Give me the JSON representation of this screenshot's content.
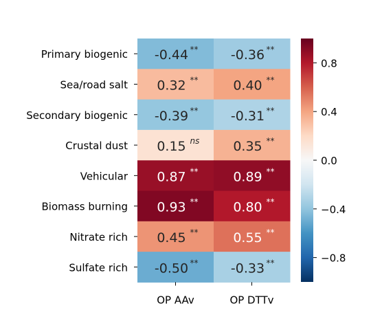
{
  "chart_data": {
    "type": "heatmap",
    "title": "",
    "xlabel": "",
    "ylabel": "",
    "columns": [
      "OP AAv",
      "OP DTTv"
    ],
    "rows": [
      "Primary biogenic",
      "Sea/road salt",
      "Secondary biogenic",
      "Crustal dust",
      "Vehicular",
      "Biomass burning",
      "Nitrate rich",
      "Sulfate rich"
    ],
    "values": [
      [
        -0.44,
        -0.36
      ],
      [
        0.32,
        0.4
      ],
      [
        -0.39,
        -0.31
      ],
      [
        0.15,
        0.35
      ],
      [
        0.87,
        0.89
      ],
      [
        0.93,
        0.8
      ],
      [
        0.45,
        0.55
      ],
      [
        -0.5,
        -0.33
      ]
    ],
    "cell_labels": [
      [
        "-0.44",
        "-0.36"
      ],
      [
        "0.32",
        "0.40"
      ],
      [
        "-0.39",
        "-0.31"
      ],
      [
        "0.15",
        "0.35"
      ],
      [
        "0.87",
        "0.89"
      ],
      [
        "0.93",
        "0.80"
      ],
      [
        "0.45",
        "0.55"
      ],
      [
        "-0.50",
        "-0.33"
      ]
    ],
    "significance": [
      [
        "**",
        "**"
      ],
      [
        "**",
        "**"
      ],
      [
        "**",
        "**"
      ],
      [
        "ns",
        "**"
      ],
      [
        "**",
        "**"
      ],
      [
        "**",
        "**"
      ],
      [
        "**",
        "**"
      ],
      [
        "**",
        "**"
      ]
    ],
    "colormap": "RdBu_r",
    "vmin": -1.0,
    "vmax": 1.0,
    "colorbar": {
      "ticks": [
        0.8,
        0.4,
        0.0,
        -0.4,
        -0.8
      ],
      "tick_labels": [
        "0.8",
        "0.4",
        "0.0",
        "−0.4",
        "−0.8"
      ]
    }
  }
}
